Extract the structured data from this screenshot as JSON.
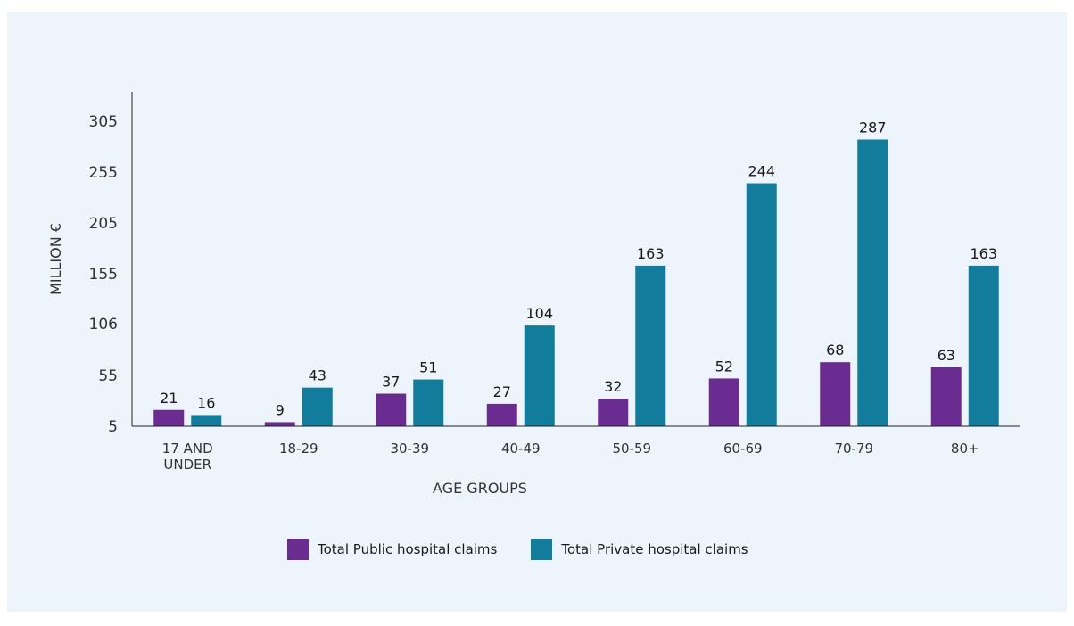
{
  "colors": {
    "public": "#6a2c91",
    "private": "#127c9c",
    "axis": "#222222",
    "text": "#1a1a1a",
    "tick_text": "#333333",
    "background": "#eef4fb"
  },
  "chart_data": {
    "type": "bar",
    "title": "",
    "xlabel": "AGE GROUPS",
    "ylabel": "MILLION €",
    "categories": [
      [
        "17 AND",
        "UNDER"
      ],
      [
        "18-29"
      ],
      [
        "30-39"
      ],
      [
        "40-49"
      ],
      [
        "50-59"
      ],
      [
        "60-69"
      ],
      [
        "70-79"
      ],
      [
        "80+"
      ]
    ],
    "yticks": [
      5,
      55,
      106,
      155,
      205,
      255,
      305
    ],
    "ylim": [
      5,
      305
    ],
    "grid": false,
    "legend_position": "bottom",
    "series": [
      {
        "name": "Total Public hospital claims",
        "color_key": "public",
        "values": [
          21,
          9,
          37,
          27,
          32,
          52,
          68,
          63
        ]
      },
      {
        "name": "Total Private hospital claims",
        "color_key": "private",
        "values": [
          16,
          43,
          51,
          104,
          163,
          244,
          287,
          163
        ]
      }
    ]
  }
}
